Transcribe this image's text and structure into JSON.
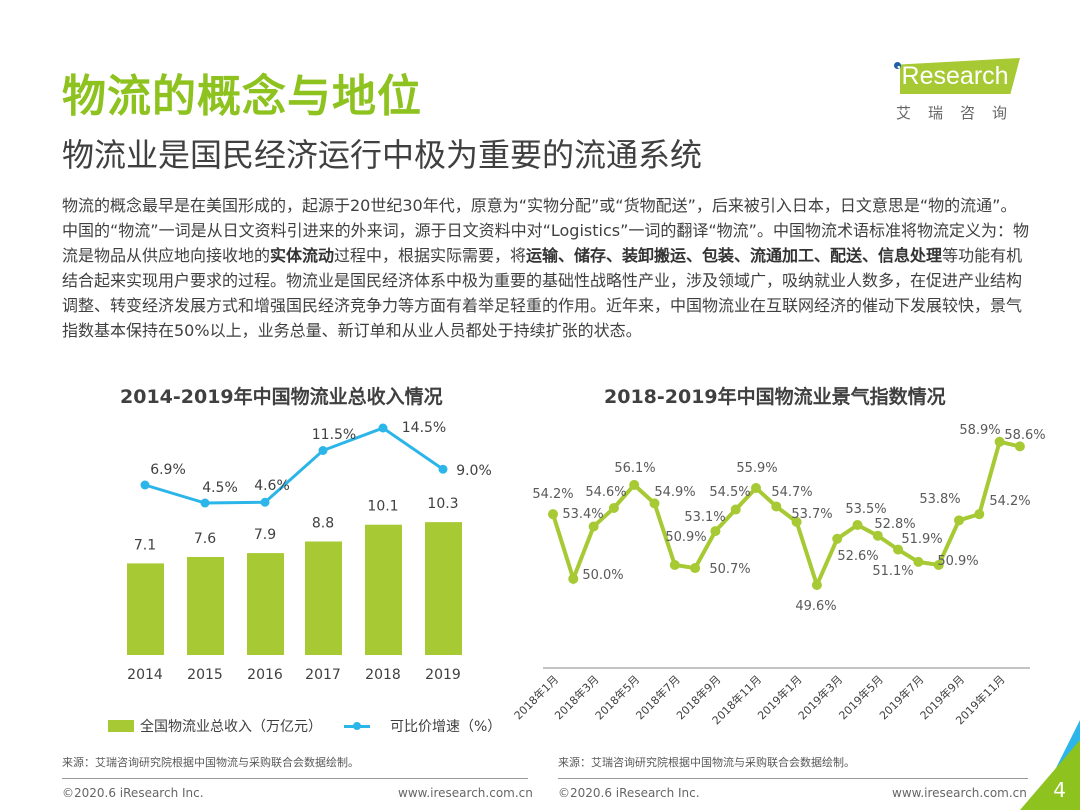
{
  "header": {
    "title": "物流的概念与地位",
    "subtitle": "物流业是国民经济运行中极为重要的流通系统"
  },
  "logo": {
    "text": "iResearch",
    "cn": "艾瑞咨询"
  },
  "paragraph": [
    {
      "t": "物流的概念最早是在美国形成的，起源于20世纪30年代，原意为“实物分配”或“货物配送”，后来被引入日本，日文意思是“物的流通”。中国的“物流”一词是从日文资料引进来的外来词，源于日文资料中对“Logistics”一词的翻译“物流”。中国物流术语标准将物流定义为：物流是物品从供应地向接收地的",
      "b": false
    },
    {
      "t": "实体流动",
      "b": true
    },
    {
      "t": "过程中，根据实际需要，将",
      "b": false
    },
    {
      "t": "运输、储存、装卸搬运、包装、流通加工、配送、信息处理",
      "b": true
    },
    {
      "t": "等功能有机结合起来实现用户要求的过程。物流业是国民经济体系中极为重要的基础性战略性产业，涉及领域广，吸纳就业人数多，在促进产业结构调整、转变经济发展方式和增强国民经济竞争力等方面有着举足轻重的作用。近年来，中国物流业在互联网经济的催动下发展较快，景气指数基本保持在50%以上，业务总量、新订单和从业人员都处于持续扩张的状态。",
      "b": false
    }
  ],
  "colors": {
    "brand_green": "#8dc21f",
    "bar": "#a6c934",
    "line_blue": "#2bb5e8",
    "line_green": "#a6c934"
  },
  "chart_data": [
    {
      "type": "bar+line",
      "title": "2014-2019年中国物流业总收入情况",
      "categories": [
        "2014",
        "2015",
        "2016",
        "2017",
        "2018",
        "2019"
      ],
      "series": [
        {
          "name": "全国物流业总收入（万亿元）",
          "type": "bar",
          "values": [
            7.1,
            7.6,
            7.9,
            8.8,
            10.1,
            10.3
          ],
          "labels": [
            "7.1",
            "7.6",
            "7.9",
            "8.8",
            "10.1",
            "10.3"
          ]
        },
        {
          "name": "可比价增速（%）",
          "type": "line",
          "values": [
            6.9,
            4.5,
            4.6,
            11.5,
            14.5,
            9.0
          ],
          "labels": [
            "6.9%",
            "4.5%",
            "4.6%",
            "11.5%",
            "14.5%",
            "9.0%"
          ]
        }
      ],
      "legend": "bottom",
      "source": "来源：艾瑞咨询研究院根据中国物流与采购联合会数据绘制。"
    },
    {
      "type": "line",
      "title": "2018-2019年中国物流业景气指数情况",
      "x_tick_labels": [
        "2018年1月",
        "2018年3月",
        "2018年5月",
        "2018年7月",
        "2018年9月",
        "2018年11月",
        "2019年1月",
        "2019年3月",
        "2019年5月",
        "2019年7月",
        "2019年9月",
        "2019年11月"
      ],
      "values": [
        54.2,
        50.0,
        53.4,
        54.6,
        56.1,
        54.9,
        50.9,
        50.7,
        53.1,
        54.5,
        55.9,
        54.7,
        53.7,
        49.6,
        52.6,
        53.5,
        52.8,
        51.9,
        51.1,
        50.9,
        53.8,
        54.2,
        58.9,
        58.6
      ],
      "labels": [
        "54.2%",
        "50.0%",
        "53.4%",
        "54.6%",
        "56.1%",
        "54.9%",
        "50.9%",
        "50.7%",
        "53.1%",
        "54.5%",
        "55.9%",
        "54.7%",
        "53.7%",
        "49.6%",
        "52.6%",
        "53.5%",
        "52.8%",
        "51.9%",
        "51.1%",
        "50.9%",
        "53.8%",
        "54.2%",
        "58.9%",
        "58.6%"
      ],
      "source": "来源：艾瑞咨询研究院根据中国物流与采购联合会数据绘制。"
    }
  ],
  "footer": {
    "copyright": "©2020.6 iResearch Inc.",
    "url": "www.iresearch.com.cn",
    "page": "4"
  }
}
